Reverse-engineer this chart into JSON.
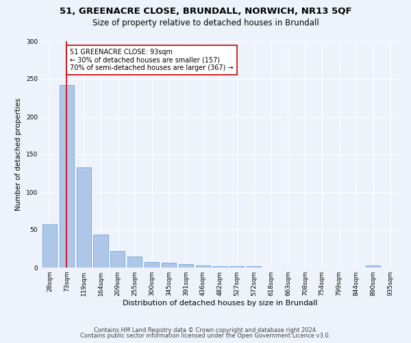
{
  "title1": "51, GREENACRE CLOSE, BRUNDALL, NORWICH, NR13 5QF",
  "title2": "Size of property relative to detached houses in Brundall",
  "xlabel": "Distribution of detached houses by size in Brundall",
  "ylabel": "Number of detached properties",
  "bar_color": "#aec6e8",
  "bar_edge_color": "#5b9bd5",
  "categories": [
    "28sqm",
    "73sqm",
    "119sqm",
    "164sqm",
    "209sqm",
    "255sqm",
    "300sqm",
    "345sqm",
    "391sqm",
    "436sqm",
    "482sqm",
    "527sqm",
    "572sqm",
    "618sqm",
    "663sqm",
    "708sqm",
    "754sqm",
    "799sqm",
    "844sqm",
    "890sqm",
    "935sqm"
  ],
  "values": [
    57,
    242,
    133,
    44,
    22,
    15,
    7,
    6,
    5,
    3,
    2,
    2,
    2,
    0,
    0,
    0,
    0,
    0,
    0,
    3,
    0
  ],
  "property_line_x": 1.0,
  "annotation_line1": "51 GREENACRE CLOSE: 93sqm",
  "annotation_line2": "← 30% of detached houses are smaller (157)",
  "annotation_line3": "70% of semi-detached houses are larger (367) →",
  "annotation_box_color": "#ffffff",
  "annotation_box_edge_color": "#cc0000",
  "annotation_text_color": "#000000",
  "vline_color": "#cc0000",
  "footer1": "Contains HM Land Registry data © Crown copyright and database right 2024.",
  "footer2": "Contains public sector information licensed under the Open Government Licence v3.0.",
  "ylim": [
    0,
    300
  ],
  "background_color": "#eef2fa",
  "grid_color": "#ffffff",
  "title1_fontsize": 9.5,
  "title2_fontsize": 8.5,
  "xlabel_fontsize": 8,
  "ylabel_fontsize": 7.5,
  "tick_fontsize": 6.5,
  "annotation_fontsize": 7,
  "footer_fontsize": 6
}
